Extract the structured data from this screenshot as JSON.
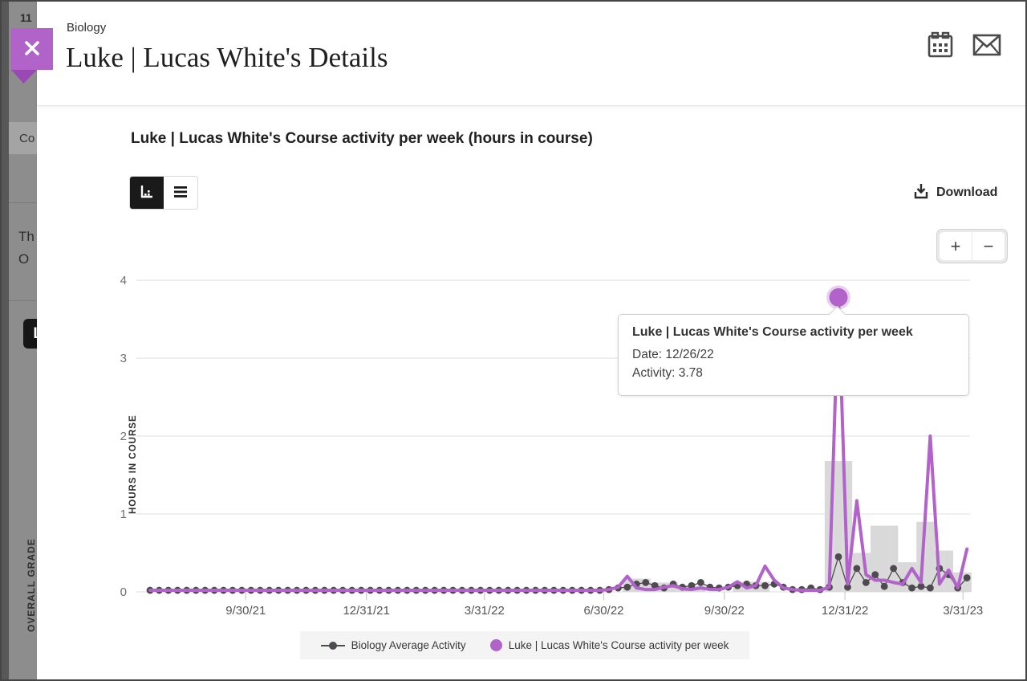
{
  "backdrop": {
    "top_number": "11",
    "breadcrumb": "Co",
    "line1": "Th",
    "line2": "O",
    "badge": "L",
    "vertical_label": "OVERALL GRADE"
  },
  "header": {
    "course": "Biology",
    "title": "Luke | Lucas White's Details",
    "close_icon": "close-x"
  },
  "toolbar": {
    "download_label": "Download"
  },
  "zoom_controls": {
    "zoom_in": "+",
    "zoom_out": "−"
  },
  "chart": {
    "section_title": "Luke | Lucas White's Course activity per week (hours in course)"
  },
  "tooltip": {
    "title": "Luke | Lucas White's Course activity per week",
    "date_line": "Date: 12/26/22",
    "activity_line": "Activity: 3.78"
  },
  "legend": {
    "items": [
      {
        "label": "Biology Average Activity"
      },
      {
        "label": "Luke | Lucas White's Course activity per week"
      }
    ]
  },
  "colors": {
    "accent_purple": "#b263c9",
    "ribbon_purple": "#b263c9",
    "ribbon_tail_purple": "#9a49b4",
    "avg_dot_gray": "#4f4a50",
    "avg_line_gray": "#4d4d4d",
    "bar_gray": "#d9d9d9",
    "gridline_gray": "#e3e3e3"
  },
  "chart_data": {
    "type": "line",
    "title": "Luke | Lucas White's Course activity per week (hours in course)",
    "xlabel": "",
    "ylabel": "HOURS IN COURSE",
    "ylim": [
      0,
      4
    ],
    "yticks": [
      0,
      1,
      2,
      3,
      4
    ],
    "x_start_date": "7/19/21",
    "x_interval": "weekly",
    "xticks": [
      {
        "label": "9/30/21",
        "week": 10.43
      },
      {
        "label": "12/31/21",
        "week": 23.57
      },
      {
        "label": "3/31/22",
        "week": 36.43
      },
      {
        "label": "6/30/22",
        "week": 49.43
      },
      {
        "label": "9/30/22",
        "week": 62.57
      },
      {
        "label": "12/31/22",
        "week": 75.71
      },
      {
        "label": "3/31/23",
        "week": 88.57
      }
    ],
    "series": [
      {
        "name": "Biology Average Activity",
        "style": "thin-line-with-dots",
        "color": "#4f4a50",
        "values": [
          0.02,
          0.02,
          0.02,
          0.02,
          0.02,
          0.02,
          0.02,
          0.02,
          0.02,
          0.02,
          0.02,
          0.02,
          0.02,
          0.02,
          0.02,
          0.02,
          0.02,
          0.02,
          0.02,
          0.02,
          0.02,
          0.02,
          0.02,
          0.02,
          0.02,
          0.02,
          0.02,
          0.02,
          0.02,
          0.02,
          0.02,
          0.02,
          0.02,
          0.02,
          0.02,
          0.02,
          0.02,
          0.02,
          0.02,
          0.02,
          0.02,
          0.02,
          0.02,
          0.02,
          0.02,
          0.02,
          0.02,
          0.02,
          0.02,
          0.02,
          0.03,
          0.05,
          0.06,
          0.1,
          0.12,
          0.08,
          0.05,
          0.1,
          0.06,
          0.08,
          0.12,
          0.06,
          0.05,
          0.06,
          0.08,
          0.1,
          0.08,
          0.08,
          0.1,
          0.06,
          0.03,
          0.03,
          0.05,
          0.03,
          0.06,
          0.45,
          0.06,
          0.3,
          0.12,
          0.22,
          0.07,
          0.3,
          0.12,
          0.05,
          0.07,
          0.05,
          0.3,
          0.22,
          0.05,
          0.18
        ]
      },
      {
        "name": "Luke | Lucas White's Course activity per week",
        "style": "thick-line",
        "color": "#b263c9",
        "values": [
          0.02,
          0.02,
          0.02,
          0.02,
          0.02,
          0.02,
          0.02,
          0.02,
          0.02,
          0.02,
          0.02,
          0.02,
          0.02,
          0.02,
          0.02,
          0.02,
          0.02,
          0.02,
          0.02,
          0.02,
          0.02,
          0.02,
          0.02,
          0.02,
          0.02,
          0.02,
          0.02,
          0.02,
          0.02,
          0.02,
          0.02,
          0.02,
          0.02,
          0.02,
          0.02,
          0.02,
          0.02,
          0.02,
          0.02,
          0.02,
          0.02,
          0.02,
          0.02,
          0.02,
          0.02,
          0.02,
          0.02,
          0.02,
          0.02,
          0.02,
          0.03,
          0.06,
          0.2,
          0.05,
          0.03,
          0.03,
          0.06,
          0.08,
          0.04,
          0.03,
          0.05,
          0.03,
          0.03,
          0.06,
          0.13,
          0.05,
          0.08,
          0.33,
          0.15,
          0.05,
          0.03,
          0.02,
          0.02,
          0.02,
          0.06,
          3.78,
          0.1,
          1.17,
          0.22,
          0.15,
          0.15,
          0.12,
          0.1,
          0.3,
          0.12,
          2.0,
          0.1,
          0.28,
          0.05,
          0.55
        ]
      }
    ],
    "bars": {
      "name": "Weekly activity bars (background)",
      "color": "#d9d9d9",
      "values": [
        0,
        0,
        0,
        0,
        0,
        0,
        0,
        0,
        0,
        0,
        0,
        0,
        0,
        0,
        0,
        0,
        0,
        0,
        0,
        0,
        0,
        0,
        0,
        0,
        0,
        0,
        0,
        0,
        0,
        0,
        0,
        0,
        0,
        0,
        0,
        0,
        0,
        0,
        0,
        0,
        0,
        0,
        0,
        0,
        0,
        0,
        0,
        0,
        0,
        0,
        0,
        0,
        0.17,
        0.17,
        0.17,
        0.12,
        0.12,
        0.12,
        0.08,
        0.08,
        0.08,
        0,
        0,
        0,
        0.13,
        0.13,
        0.13,
        0.13,
        0,
        0,
        0,
        0,
        0,
        0,
        1.68,
        1.68,
        1.68,
        0.5,
        0.5,
        0.85,
        0.85,
        0.85,
        0.38,
        0.38,
        0.9,
        0.9,
        0.53,
        0.53,
        0.25,
        0.25
      ]
    },
    "highlight": {
      "series": "Luke | Lucas White's Course activity per week",
      "week_index": 75,
      "date": "12/26/22",
      "value": 3.78
    },
    "legend_position": "bottom",
    "grid": true
  }
}
